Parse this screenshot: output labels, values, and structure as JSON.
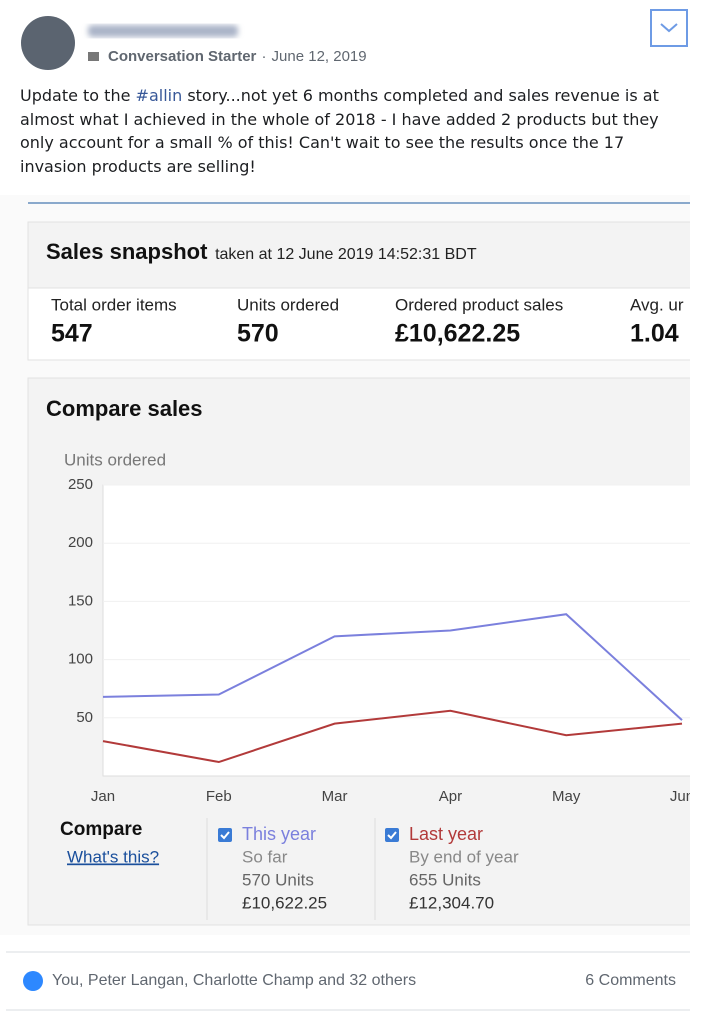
{
  "post": {
    "badge": "Conversation Starter",
    "date": "June 12, 2019",
    "body_start": "Update to the",
    "hashtag": "#allin",
    "body_end": "story...not yet 6 months completed and sales revenue is at almost what I achieved in the whole of 2018 - I have added 2 products but they only account for a small % of this! Can't wait to see the results once the 17 invasion products are selling!",
    "reactions": "You, Peter Langan, Charlotte Champ and 32 others",
    "comments": "6 Comments"
  },
  "snapshot": {
    "title": "Sales snapshot",
    "taken": "taken at 12 June 2019 14:52:31 BDT",
    "metrics": [
      {
        "label": "Total order items",
        "value": "547"
      },
      {
        "label": "Units ordered",
        "value": "570"
      },
      {
        "label": "Ordered product sales",
        "value": "£10,622.25"
      },
      {
        "label": "Avg. ur",
        "value": "1.04"
      }
    ]
  },
  "chart_data": {
    "type": "line",
    "title": "Compare sales",
    "y_label": "Units ordered",
    "categories": [
      "Jan",
      "Feb",
      "Mar",
      "Apr",
      "May",
      "Jun"
    ],
    "series": [
      {
        "name": "This year",
        "color": "#7b80dd",
        "values": [
          68,
          70,
          120,
          125,
          139,
          48
        ]
      },
      {
        "name": "Last year",
        "color": "#b23a3a",
        "values": [
          30,
          12,
          45,
          56,
          35,
          45
        ]
      }
    ],
    "ylim": [
      0,
      250
    ],
    "yticks": [
      50,
      100,
      150,
      200,
      250
    ],
    "grid": true
  },
  "compare": {
    "title": "Compare",
    "link": "What's this?",
    "items": [
      {
        "sub": "So far",
        "units": "570 Units",
        "sales": "£10,622.25"
      },
      {
        "sub": "By end of year",
        "units": "655 Units",
        "sales": "£12,304.70"
      }
    ]
  }
}
